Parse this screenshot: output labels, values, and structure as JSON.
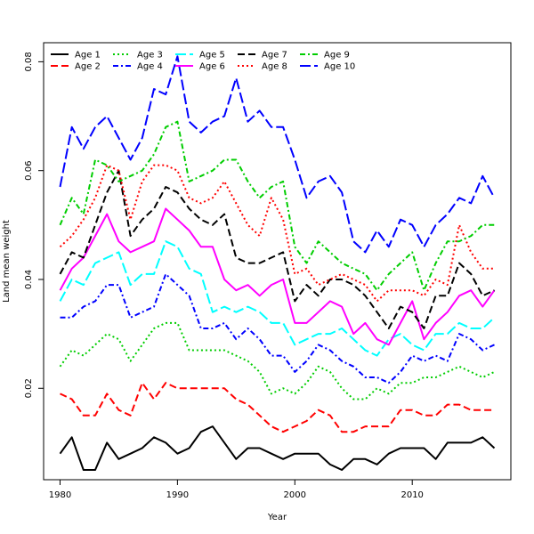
{
  "chart_data": {
    "type": "line",
    "title": "",
    "xlabel": "Year",
    "ylabel": "Land mean weight",
    "xlim": [
      1978.6,
      2018.4
    ],
    "ylim": [
      0.0032,
      0.0835
    ],
    "x_ticks": [
      1980,
      1990,
      2000,
      2010
    ],
    "y_ticks": [
      0.02,
      0.04,
      0.06,
      0.08
    ],
    "y_tick_labels": [
      "0.02",
      "0.04",
      "0.06",
      "0.08"
    ],
    "grid": false,
    "legend_position": "top-left",
    "x": [
      1980,
      1981,
      1982,
      1983,
      1984,
      1985,
      1986,
      1987,
      1988,
      1989,
      1990,
      1991,
      1992,
      1993,
      1994,
      1995,
      1996,
      1997,
      1998,
      1999,
      2000,
      2001,
      2002,
      2003,
      2004,
      2005,
      2006,
      2007,
      2008,
      2009,
      2010,
      2011,
      2012,
      2013,
      2014,
      2015,
      2016,
      2017
    ],
    "series": [
      {
        "name": "Age 1",
        "color": "#000000",
        "dash": "solid",
        "values": [
          0.008,
          0.011,
          0.005,
          0.005,
          0.01,
          0.007,
          0.008,
          0.009,
          0.011,
          0.01,
          0.008,
          0.009,
          0.012,
          0.013,
          0.01,
          0.007,
          0.009,
          0.009,
          0.008,
          0.007,
          0.008,
          0.008,
          0.008,
          0.006,
          0.005,
          0.007,
          0.007,
          0.006,
          0.008,
          0.009,
          0.009,
          0.009,
          0.007,
          0.01,
          0.01,
          0.01,
          0.011,
          0.009
        ]
      },
      {
        "name": "Age 2",
        "color": "#ff0000",
        "dash": "dashed",
        "values": [
          0.019,
          0.018,
          0.015,
          0.015,
          0.019,
          0.016,
          0.015,
          0.021,
          0.018,
          0.021,
          0.02,
          0.02,
          0.02,
          0.02,
          0.02,
          0.018,
          0.017,
          0.015,
          0.013,
          0.012,
          0.013,
          0.014,
          0.016,
          0.015,
          0.012,
          0.012,
          0.013,
          0.013,
          0.013,
          0.016,
          0.016,
          0.015,
          0.015,
          0.017,
          0.017,
          0.016,
          0.016,
          0.016
        ]
      },
      {
        "name": "Age 3",
        "color": "#00cd00",
        "dash": "dotted",
        "values": [
          0.024,
          0.027,
          0.026,
          0.028,
          0.03,
          0.029,
          0.025,
          0.028,
          0.031,
          0.032,
          0.032,
          0.027,
          0.027,
          0.027,
          0.027,
          0.026,
          0.025,
          0.023,
          0.019,
          0.02,
          0.019,
          0.021,
          0.024,
          0.023,
          0.02,
          0.018,
          0.018,
          0.02,
          0.019,
          0.021,
          0.021,
          0.022,
          0.022,
          0.023,
          0.024,
          0.023,
          0.022,
          0.023
        ]
      },
      {
        "name": "Age 4",
        "color": "#0000ff",
        "dash": "dashdot",
        "values": [
          0.033,
          0.033,
          0.035,
          0.036,
          0.039,
          0.039,
          0.033,
          0.034,
          0.035,
          0.041,
          0.039,
          0.037,
          0.031,
          0.031,
          0.032,
          0.029,
          0.031,
          0.029,
          0.026,
          0.026,
          0.023,
          0.025,
          0.028,
          0.027,
          0.025,
          0.024,
          0.022,
          0.022,
          0.021,
          0.023,
          0.026,
          0.025,
          0.026,
          0.025,
          0.03,
          0.029,
          0.027,
          0.028
        ]
      },
      {
        "name": "Age 5",
        "color": "#00ffff",
        "dash": "longdash",
        "values": [
          0.036,
          0.04,
          0.039,
          0.043,
          0.044,
          0.045,
          0.039,
          0.041,
          0.041,
          0.047,
          0.046,
          0.042,
          0.041,
          0.034,
          0.035,
          0.034,
          0.035,
          0.034,
          0.032,
          0.032,
          0.028,
          0.029,
          0.03,
          0.03,
          0.031,
          0.029,
          0.027,
          0.026,
          0.029,
          0.03,
          0.028,
          0.027,
          0.03,
          0.03,
          0.032,
          0.031,
          0.031,
          0.033
        ]
      },
      {
        "name": "Age 6",
        "color": "#ff00ff",
        "dash": "solid",
        "values": [
          0.038,
          0.042,
          0.044,
          0.048,
          0.052,
          0.047,
          0.045,
          0.046,
          0.047,
          0.053,
          0.051,
          0.049,
          0.046,
          0.046,
          0.04,
          0.038,
          0.039,
          0.037,
          0.039,
          0.04,
          0.032,
          0.032,
          0.034,
          0.036,
          0.035,
          0.03,
          0.032,
          0.029,
          0.028,
          0.032,
          0.036,
          0.029,
          0.032,
          0.034,
          0.037,
          0.038,
          0.035,
          0.038
        ]
      },
      {
        "name": "Age 7",
        "color": "#000000",
        "dash": "dashed",
        "values": [
          0.041,
          0.045,
          0.044,
          0.05,
          0.056,
          0.06,
          0.048,
          0.051,
          0.053,
          0.057,
          0.056,
          0.053,
          0.051,
          0.05,
          0.052,
          0.044,
          0.043,
          0.043,
          0.044,
          0.045,
          0.036,
          0.039,
          0.037,
          0.04,
          0.04,
          0.039,
          0.037,
          0.034,
          0.031,
          0.035,
          0.034,
          0.031,
          0.037,
          0.037,
          0.043,
          0.041,
          0.037,
          0.038
        ]
      },
      {
        "name": "Age 8",
        "color": "#ff0000",
        "dash": "dotted",
        "values": [
          0.046,
          0.048,
          0.051,
          0.055,
          0.061,
          0.06,
          0.051,
          0.058,
          0.061,
          0.061,
          0.06,
          0.055,
          0.054,
          0.055,
          0.058,
          0.054,
          0.05,
          0.048,
          0.055,
          0.051,
          0.041,
          0.042,
          0.039,
          0.04,
          0.041,
          0.04,
          0.039,
          0.036,
          0.038,
          0.038,
          0.038,
          0.037,
          0.04,
          0.039,
          0.05,
          0.045,
          0.042,
          0.042
        ]
      },
      {
        "name": "Age 9",
        "color": "#00cd00",
        "dash": "dashdot",
        "values": [
          0.05,
          0.055,
          0.052,
          0.062,
          0.061,
          0.058,
          0.059,
          0.06,
          0.063,
          0.068,
          0.069,
          0.058,
          0.059,
          0.06,
          0.062,
          0.062,
          0.058,
          0.055,
          0.057,
          0.058,
          0.046,
          0.043,
          0.047,
          0.045,
          0.043,
          0.042,
          0.041,
          0.038,
          0.041,
          0.043,
          0.045,
          0.038,
          0.043,
          0.047,
          0.047,
          0.048,
          0.05,
          0.05
        ]
      },
      {
        "name": "Age 10",
        "color": "#0000ff",
        "dash": "longdash",
        "values": [
          0.057,
          0.068,
          0.064,
          0.068,
          0.07,
          0.066,
          0.062,
          0.066,
          0.075,
          0.074,
          0.081,
          0.069,
          0.067,
          0.069,
          0.07,
          0.077,
          0.069,
          0.071,
          0.068,
          0.068,
          0.062,
          0.055,
          0.058,
          0.059,
          0.056,
          0.047,
          0.045,
          0.049,
          0.046,
          0.051,
          0.05,
          0.046,
          0.05,
          0.052,
          0.055,
          0.054,
          0.059,
          0.055
        ]
      }
    ]
  }
}
